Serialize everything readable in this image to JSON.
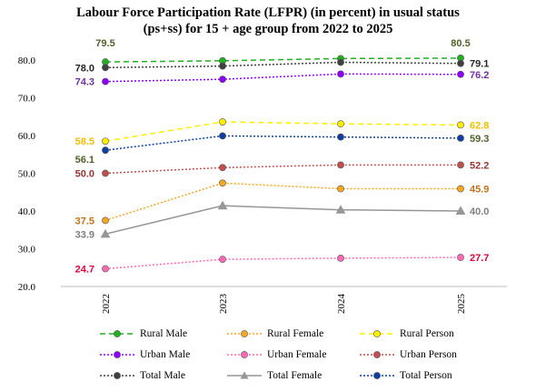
{
  "chart_data": {
    "type": "line",
    "title": "Labour Force Participation Rate (LFPR) (in percent)  in usual status",
    "subtitle": "(ps+ss) for 15 + age group from 2022 to 2025",
    "categories": [
      "2022",
      "2023",
      "2024",
      "2025"
    ],
    "ylim": [
      20,
      80
    ],
    "yticks": [
      "20.0",
      "30.0",
      "40.0",
      "50.0",
      "60.0",
      "70.0",
      "80.0"
    ],
    "grid": false,
    "legend_position": "bottom",
    "series": [
      {
        "name": "Rural Male",
        "values": [
          79.5,
          79.8,
          80.4,
          80.5
        ],
        "labels": [
          "79.5",
          "",
          "",
          "80.5"
        ],
        "color": "#22b022",
        "label_color": "#4f6228",
        "dash": "6,4",
        "marker": "circle"
      },
      {
        "name": "Rural Female",
        "values": [
          37.5,
          47.4,
          45.9,
          45.9
        ],
        "labels": [
          "37.5",
          "",
          "",
          "45.9"
        ],
        "color": "#f5a623",
        "label_color": "#c0721a",
        "dash": "2,2",
        "marker": "circle"
      },
      {
        "name": "Rural Person",
        "values": [
          58.5,
          63.6,
          63.1,
          62.8
        ],
        "labels": [
          "58.5",
          "",
          "",
          "62.8"
        ],
        "color": "#ffee00",
        "label_color": "#f0c000",
        "dash": "6,4",
        "marker": "circle"
      },
      {
        "name": "Urban Male",
        "values": [
          74.3,
          74.9,
          76.3,
          76.2
        ],
        "labels": [
          "74.3",
          "",
          "",
          "76.2"
        ],
        "color": "#8b00ff",
        "label_color": "#7030a0",
        "dash": "2,2",
        "marker": "circle"
      },
      {
        "name": "Urban Female",
        "values": [
          24.7,
          27.2,
          27.5,
          27.7
        ],
        "labels": [
          "24.7",
          "",
          "",
          "27.7"
        ],
        "color": "#ff69b4",
        "label_color": "#e0003a",
        "dash": "2,2",
        "marker": "circle"
      },
      {
        "name": "Urban Person",
        "values": [
          50.0,
          51.5,
          52.2,
          52.2
        ],
        "labels": [
          "50.0",
          "",
          "",
          "52.2"
        ],
        "color": "#c0504d",
        "label_color": "#953735",
        "dash": "2,2",
        "marker": "circle"
      },
      {
        "name": "Total Male",
        "values": [
          78.0,
          78.4,
          79.4,
          79.1
        ],
        "labels": [
          "78.0",
          "",
          "",
          "79.1"
        ],
        "color": "#404040",
        "label_color": "#262626",
        "dash": "2,2",
        "marker": "circle"
      },
      {
        "name": "Total Female",
        "values": [
          33.9,
          41.4,
          40.3,
          40.0
        ],
        "labels": [
          "33.9",
          "",
          "",
          "40.0"
        ],
        "color": "#969696",
        "label_color": "#7f7f7f",
        "dash": "",
        "marker": "triangle"
      },
      {
        "name": "Total Person",
        "values": [
          56.1,
          59.9,
          59.6,
          59.3
        ],
        "labels": [
          "56.1",
          "",
          "",
          "59.3"
        ],
        "color": "#0f3fa0",
        "label_color": "#4f6228",
        "dash": "2,2",
        "marker": "circle"
      }
    ]
  }
}
